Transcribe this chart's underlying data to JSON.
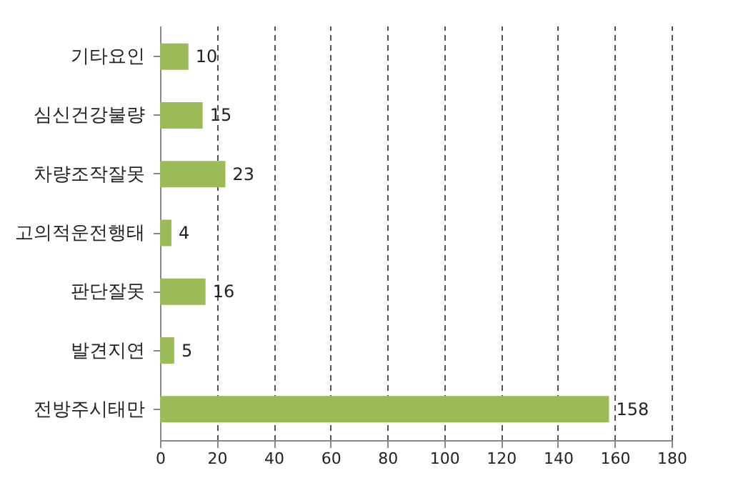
{
  "chart_data": {
    "type": "bar",
    "orientation": "horizontal",
    "categories": [
      "기타요인",
      "심신건강불량",
      "차량조작잘못",
      "고의적운전행태",
      "판단잘못",
      "발견지연",
      "전방주시태만"
    ],
    "values": [
      10,
      15,
      23,
      4,
      16,
      5,
      158
    ],
    "color": "#9bbb59",
    "xlim": [
      0,
      180
    ],
    "xticks": [
      0,
      20,
      40,
      60,
      80,
      100,
      120,
      140,
      160,
      180
    ],
    "grid": "x",
    "data_labels": true
  }
}
